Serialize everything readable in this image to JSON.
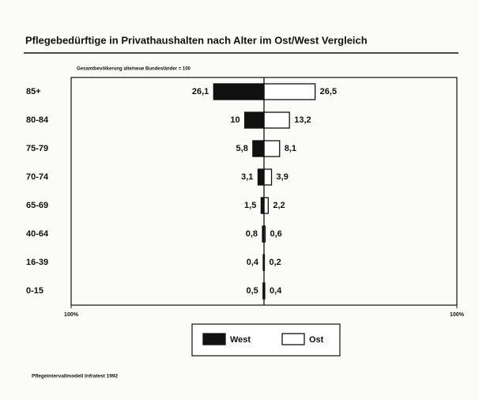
{
  "chart_data": {
    "type": "butterfly",
    "title": "Pflegebedürftige in Privathaushalten nach Alter im Ost/West Vergleich",
    "subtitle": "Gesamtbevölkerung alte/neue Bundesländer = 100",
    "source": "Pflegeintervallmodell Infratest 1992",
    "categories": [
      "85+",
      "80-84",
      "75-79",
      "70-74",
      "65-69",
      "40-64",
      "16-39",
      "0-15"
    ],
    "series": [
      {
        "name": "West",
        "color": "#111111",
        "values": [
          26.1,
          10,
          5.8,
          3.1,
          1.5,
          0.8,
          0.4,
          0.5
        ],
        "value_labels": [
          "26,1",
          "10",
          "5,8",
          "3,1",
          "1,5",
          "0,8",
          "0,4",
          "0,5"
        ]
      },
      {
        "name": "Ost",
        "color": "#ffffff",
        "values": [
          26.5,
          13.2,
          8.1,
          3.9,
          2.2,
          0.6,
          0.2,
          0.4
        ],
        "value_labels": [
          "26,5",
          "13,2",
          "8,1",
          "3,9",
          "2,2",
          "0,6",
          "0,2",
          "0,4"
        ]
      }
    ],
    "xlim": [
      -100,
      100
    ],
    "xticks": [
      {
        "value": -100,
        "label": "100%"
      },
      {
        "value": 100,
        "label": "100%"
      }
    ]
  }
}
